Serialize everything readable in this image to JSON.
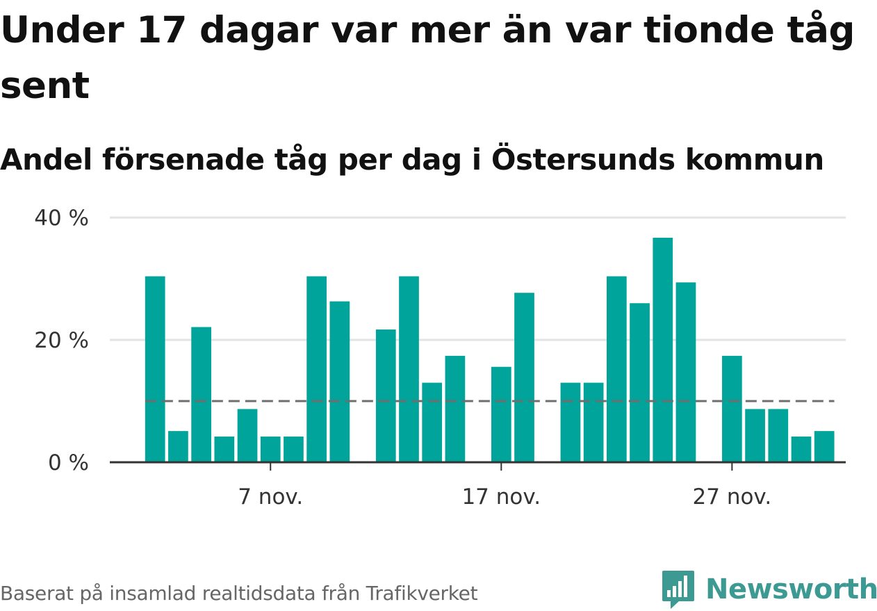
{
  "title": "Under 17 dagar var mer än var tionde tåg sent",
  "subtitle": "Andel försenade tåg per dag i Östersunds kommun",
  "footer": "Baserat på insamlad realtidsdata från Trafikverket",
  "brand": {
    "name": "Newsworthy",
    "icon": "bar-chart-speech-bubble-icon",
    "color": "#3d9a93"
  },
  "chart_data": {
    "type": "bar",
    "title": "Under 17 dagar var mer än var tionde tåg sent",
    "subtitle": "Andel försenade tåg per dag i Östersunds kommun",
    "x_domain": [
      "2023-11-01",
      "2023-11-30"
    ],
    "x": [
      "2023-11-02",
      "2023-11-03",
      "2023-11-04",
      "2023-11-05",
      "2023-11-06",
      "2023-11-07",
      "2023-11-08",
      "2023-11-09",
      "2023-11-10",
      "2023-11-12",
      "2023-11-13",
      "2023-11-14",
      "2023-11-15",
      "2023-11-17",
      "2023-11-18",
      "2023-11-20",
      "2023-11-21",
      "2023-11-22",
      "2023-11-23",
      "2023-11-24",
      "2023-11-25",
      "2023-11-27",
      "2023-11-28",
      "2023-11-29",
      "2023-11-30",
      "2023-12-01"
    ],
    "values": [
      30.4,
      5.1,
      22.1,
      4.2,
      8.7,
      4.2,
      4.2,
      30.4,
      26.3,
      21.7,
      30.4,
      13.0,
      17.4,
      15.6,
      27.7,
      13.0,
      13.0,
      30.4,
      26.0,
      36.7,
      29.4,
      17.4,
      8.7,
      8.7,
      4.2,
      5.1
    ],
    "reference_line": {
      "value": 10,
      "style": "dashed",
      "color": "#6e6e6e"
    },
    "bar_color": "#00a49a",
    "ylim": [
      0,
      40
    ],
    "y_ticks": [
      {
        "value": 0,
        "label": "0 %"
      },
      {
        "value": 20,
        "label": "20 %"
      },
      {
        "value": 40,
        "label": "40 %"
      }
    ],
    "x_ticks": [
      {
        "value": "2023-11-07",
        "label": "7 nov."
      },
      {
        "value": "2023-11-17",
        "label": "17 nov."
      },
      {
        "value": "2023-11-27",
        "label": "27 nov."
      }
    ],
    "grid": true,
    "xlabel": "",
    "ylabel": ""
  }
}
